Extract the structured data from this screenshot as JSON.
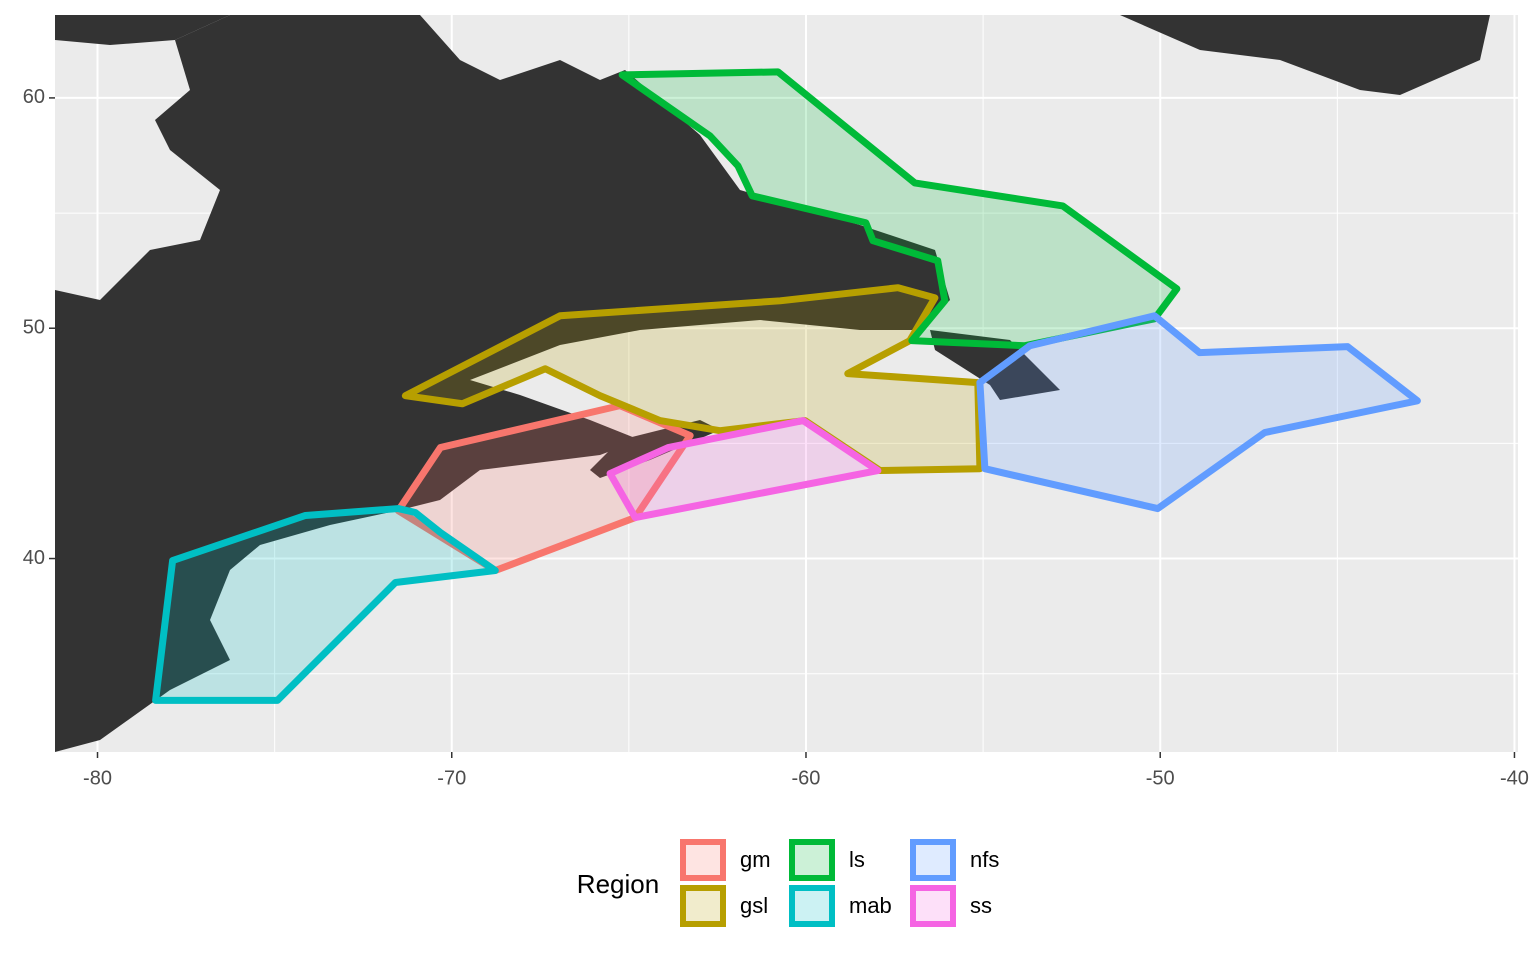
{
  "chart_data": {
    "type": "map",
    "xlim": [
      -81.2,
      -39.9
    ],
    "ylim": [
      31.6,
      63.6
    ],
    "xticks": [
      -80,
      -70,
      -60,
      -50,
      -40
    ],
    "yticks": [
      40,
      50,
      60
    ],
    "xminor": [
      -75,
      -65,
      -55,
      -45
    ],
    "yminor": [
      35,
      45,
      55
    ],
    "grid": true,
    "legend_title": "Region",
    "legend_position": "bottom",
    "fill_opacity": 0.2,
    "series": [
      {
        "name": "gm",
        "color": "#f8766d",
        "lon": [
          -71.51,
          -70.32,
          -65.25,
          -63.27,
          -64.82,
          -68.77
        ],
        "lat": [
          42.08,
          44.82,
          46.64,
          45.34,
          41.78,
          39.48
        ]
      },
      {
        "name": "gsl",
        "color": "#b79f00",
        "lon": [
          -71.31,
          -66.94,
          -60.73,
          -57.4,
          -56.36,
          -57.07,
          -58.82,
          -55.15,
          -55.09,
          -57.91,
          -60.03,
          -62.43,
          -64.12,
          -65.81,
          -67.36,
          -69.7
        ],
        "lat": [
          47.07,
          50.54,
          51.19,
          51.76,
          51.32,
          49.46,
          48.03,
          47.64,
          43.9,
          43.82,
          45.99,
          45.55,
          45.99,
          47.07,
          48.24,
          46.72
        ]
      },
      {
        "name": "ls",
        "color": "#00ba38",
        "lon": [
          -65.19,
          -62.71,
          -61.92,
          -61.52,
          -58.31,
          -58.11,
          -56.28,
          -56.08,
          -57.01,
          -53.82,
          -50.16,
          -49.53,
          -52.75,
          -56.93,
          -60.79
        ],
        "lat": [
          61.0,
          58.35,
          57.05,
          55.75,
          54.58,
          53.8,
          52.93,
          51.19,
          49.46,
          49.24,
          50.41,
          51.71,
          55.31,
          56.31,
          61.13
        ]
      },
      {
        "name": "mab",
        "color": "#00bfc4",
        "lon": [
          -78.36,
          -77.88,
          -74.13,
          -71.51,
          -71.03,
          -70.32,
          -68.77,
          -71.59,
          -74.92
        ],
        "lat": [
          33.84,
          39.91,
          41.87,
          42.17,
          42.0,
          41.13,
          39.48,
          38.96,
          33.84
        ]
      },
      {
        "name": "nfs",
        "color": "#619cff",
        "lon": [
          -55.09,
          -53.68,
          -50.16,
          -48.89,
          -44.71,
          -42.74,
          -47.05,
          -50.07,
          -54.95
        ],
        "lat": [
          47.64,
          49.24,
          50.54,
          48.94,
          49.2,
          46.85,
          45.47,
          42.17,
          43.9
        ]
      },
      {
        "name": "ss",
        "color": "#f564e3",
        "lon": [
          -65.53,
          -63.89,
          -60.08,
          -57.97,
          -64.82
        ],
        "lat": [
          43.69,
          44.82,
          45.99,
          43.82,
          41.78
        ]
      }
    ]
  }
}
